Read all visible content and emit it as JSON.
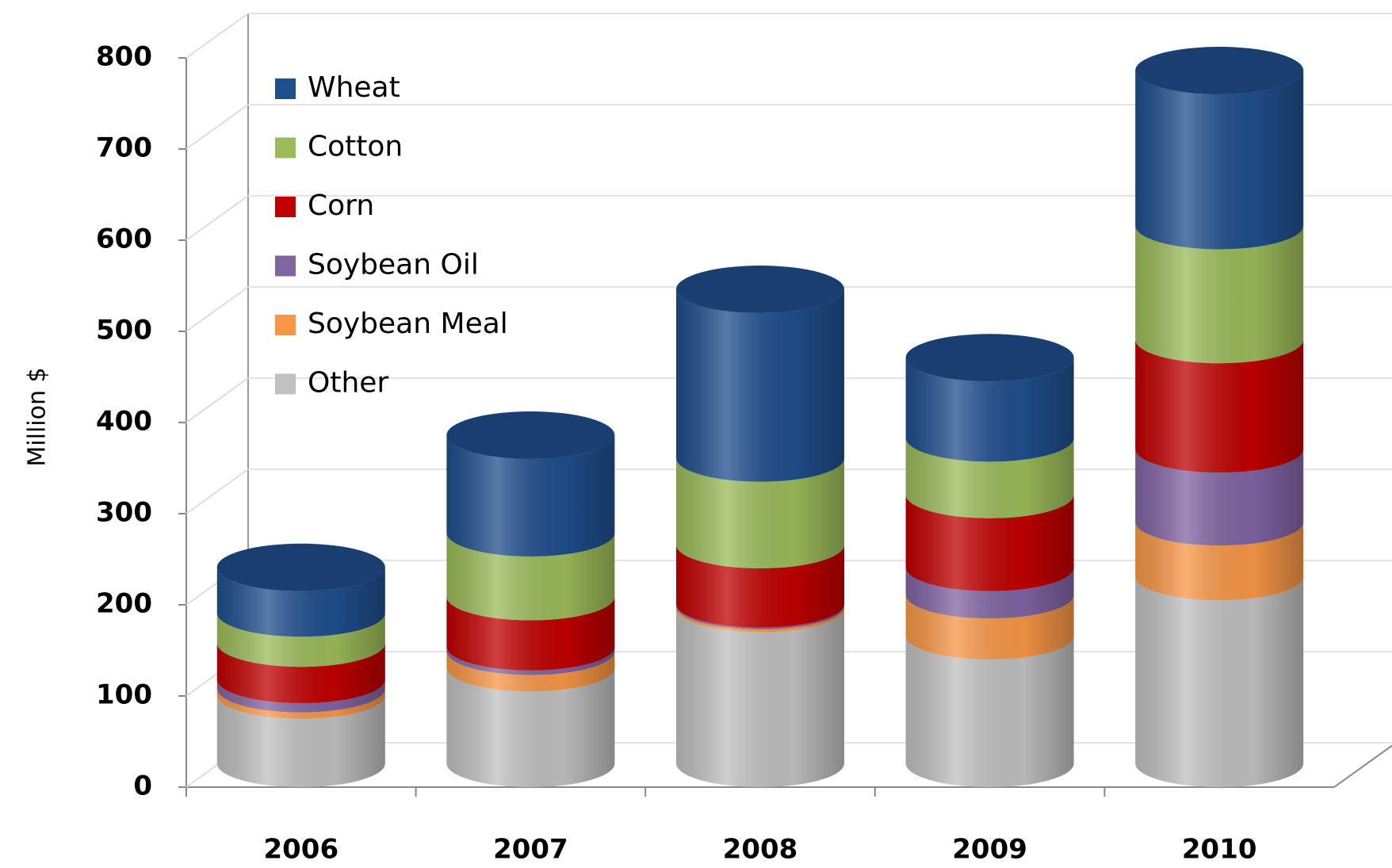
{
  "chart_data": {
    "type": "bar3d_stacked",
    "y_label": "Million $",
    "categories": [
      "2006",
      "2007",
      "2008",
      "2009",
      "2010"
    ],
    "series": [
      {
        "name": "Wheat",
        "color": "#1f4e8c",
        "values": [
          50,
          107,
          185,
          88,
          170
        ]
      },
      {
        "name": "Cotton",
        "color": "#9bbb59",
        "values": [
          33,
          70,
          95,
          62,
          125
        ]
      },
      {
        "name": "Corn",
        "color": "#c00000",
        "values": [
          40,
          55,
          65,
          80,
          120
        ]
      },
      {
        "name": "Soybean Oil",
        "color": "#8064a2",
        "values": [
          10,
          5,
          2,
          30,
          80
        ]
      },
      {
        "name": "Soybean Meal",
        "color": "#f79646",
        "values": [
          7,
          18,
          3,
          45,
          60
        ]
      },
      {
        "name": "Other",
        "color": "#c0c0c0",
        "values": [
          75,
          105,
          170,
          140,
          205
        ]
      }
    ],
    "ylim": [
      0,
      800
    ],
    "yticks": [
      0,
      100,
      200,
      300,
      400,
      500,
      600,
      700,
      800
    ],
    "grid": true,
    "legend": "upper left"
  }
}
